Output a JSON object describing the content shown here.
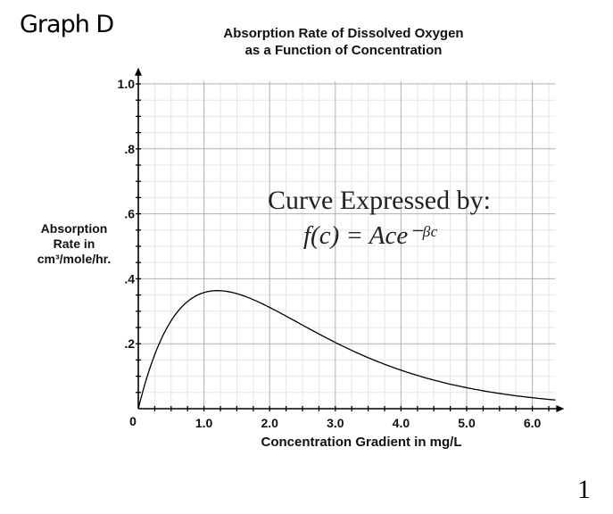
{
  "page": {
    "heading": "Graph D",
    "page_number": "1"
  },
  "annotation": {
    "line1": "Curve Expressed by:",
    "line2": "f(c) = Ace⁻ᵝᶜ"
  },
  "chart_data": {
    "type": "line",
    "title": "Absorption Rate of Dissolved Oxygen\nas a Function of Concentration",
    "title_lines": [
      "Absorption Rate of Dissolved Oxygen",
      "as a Function of Concentration"
    ],
    "xlabel": "Concentration Gradient in mg/L",
    "ylabel_lines": [
      "Absorption",
      "Rate in",
      "cm³/mole/hr."
    ],
    "xlim": [
      0,
      6.35
    ],
    "ylim": [
      0,
      1.02
    ],
    "x_ticks": [
      {
        "v": 0,
        "label": "0"
      },
      {
        "v": 1,
        "label": "1.0"
      },
      {
        "v": 2,
        "label": "2.0"
      },
      {
        "v": 3,
        "label": "3.0"
      },
      {
        "v": 4,
        "label": "4.0"
      },
      {
        "v": 5,
        "label": "5.0"
      },
      {
        "v": 6,
        "label": "6.0"
      }
    ],
    "y_ticks": [
      {
        "v": 0.2,
        "label": ".2"
      },
      {
        "v": 0.4,
        "label": ".4"
      },
      {
        "v": 0.6,
        "label": ".6"
      },
      {
        "v": 0.8,
        "label": ".8"
      },
      {
        "v": 1.0,
        "label": "1.0"
      }
    ],
    "grid": true,
    "series": [
      {
        "x": [
          0,
          0.1,
          0.25,
          0.5,
          0.75,
          1.0,
          1.2,
          1.5,
          2.0,
          2.5,
          3.0,
          3.5,
          4.0,
          4.5,
          5.0,
          5.5,
          6.0,
          6.35
        ],
        "y": [
          0,
          0.075,
          0.166,
          0.271,
          0.33,
          0.358,
          0.363,
          0.355,
          0.312,
          0.258,
          0.204,
          0.157,
          0.118,
          0.087,
          0.064,
          0.046,
          0.034,
          0.027
        ]
      }
    ],
    "colors": {
      "curve": "#000000",
      "major_grid": "#b0b0b0",
      "minor_grid": "#e6e6e6"
    }
  }
}
